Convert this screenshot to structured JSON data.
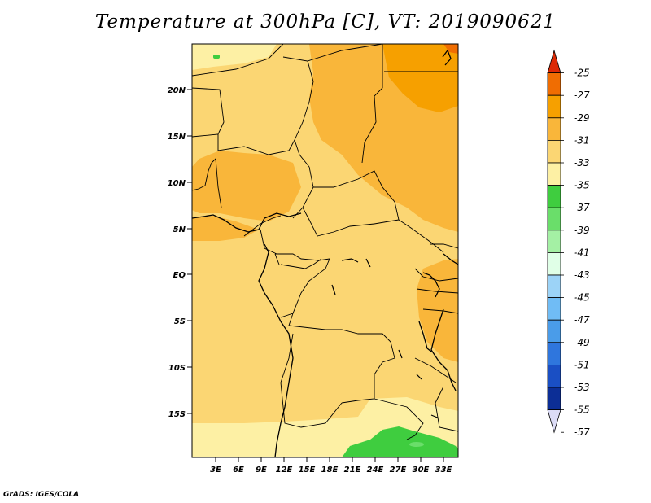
{
  "title": "Temperature at 300hPa [C], VT: 2019090621",
  "credit": "GrADS: IGES/COLA",
  "map": {
    "lat_labels": [
      "20N",
      "15N",
      "10N",
      "5N",
      "EQ",
      "5S",
      "10S",
      "15S"
    ],
    "lon_labels": [
      "3E",
      "6E",
      "9E",
      "12E",
      "15E",
      "18E",
      "21E",
      "24E",
      "27E",
      "30E",
      "33E"
    ]
  },
  "colorbar": {
    "labels": [
      "-25",
      "-27",
      "-29",
      "-31",
      "-33",
      "-35",
      "-37",
      "-39",
      "-41",
      "-43",
      "-45",
      "-47",
      "-49",
      "-51",
      "-53",
      "-55",
      "-57"
    ],
    "colors": [
      "#dd2a06",
      "#f06d02",
      "#f6a000",
      "#f9b63a",
      "#fbd673",
      "#fdf0a4",
      "#3fcd3f",
      "#6ade6a",
      "#a4f0a4",
      "#e0ffe7",
      "#9cd3f7",
      "#70bcf5",
      "#4a9ce9",
      "#2f76dd",
      "#1a4fc4",
      "#0c2e96",
      "#dcdcf6"
    ]
  }
}
